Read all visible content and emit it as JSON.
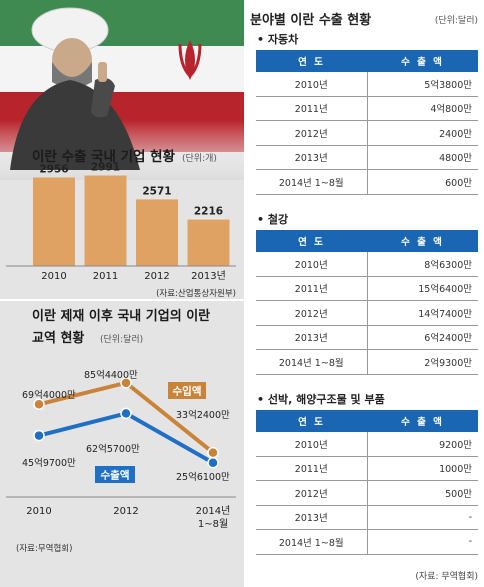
{
  "left": {
    "employment": {
      "title": "이란 수출 국내 기업 현황",
      "unit": "(단위:개)",
      "chart_data": {
        "type": "bar",
        "categories": [
          "2010",
          "2011",
          "2012",
          "2013년"
        ],
        "values": [
          2956,
          2991,
          2571,
          2216
        ],
        "ylim": [
          1400,
          3000
        ]
      },
      "source": "(자료:산업통상자원부)"
    },
    "trade": {
      "title_line1": "이란 제재 이후 국내 기업의 이란",
      "title_line2": "교역 현황",
      "unit": "(단위:달러)",
      "chart_data": {
        "type": "line",
        "x": [
          "2010",
          "2012",
          "2014년 1~8월"
        ],
        "x_tick_lines": [
          [
            "2010"
          ],
          [
            "2012"
          ],
          [
            "2014년",
            "1~8월"
          ]
        ],
        "series": [
          {
            "name": "수입액",
            "values": [
              69.4,
              85.44,
              33.24
            ],
            "labels": [
              "69억4000만",
              "85억4400만",
              "33억2400만"
            ],
            "color": "#c9843a"
          },
          {
            "name": "수출액",
            "values": [
              45.97,
              62.57,
              25.61
            ],
            "labels": [
              "45억9700만",
              "62억5700만",
              "25억6100만"
            ],
            "color": "#1f6fc5"
          }
        ],
        "ylim": [
          0,
          110
        ]
      },
      "source": "(자료:무역협회)"
    }
  },
  "right": {
    "title": "분야별 이란 수출 현황",
    "unit": "(단위:달러)",
    "col_year": "연 도",
    "col_value": "수 출 액",
    "sections": [
      {
        "name": "• 자동차",
        "rows": [
          {
            "year": "2010년",
            "value": "5억3800만"
          },
          {
            "year": "2011년",
            "value": "4억800만"
          },
          {
            "year": "2012년",
            "value": "2400만"
          },
          {
            "year": "2013년",
            "value": "4800만"
          },
          {
            "year": "2014년 1~8월",
            "value": "600만"
          }
        ]
      },
      {
        "name": "• 철강",
        "rows": [
          {
            "year": "2010년",
            "value": "8억6300만"
          },
          {
            "year": "2011년",
            "value": "15억6400만"
          },
          {
            "year": "2012년",
            "value": "14억7400만"
          },
          {
            "year": "2013년",
            "value": "6억2400만"
          },
          {
            "year": "2014년 1~8월",
            "value": "2억9300만"
          }
        ]
      },
      {
        "name": "• 선박, 해양구조물 및 부품",
        "rows": [
          {
            "year": "2010년",
            "value": "9200만"
          },
          {
            "year": "2011년",
            "value": "1000만"
          },
          {
            "year": "2012년",
            "value": "500만"
          },
          {
            "year": "2013년",
            "value": "-"
          },
          {
            "year": "2014년 1~8월",
            "value": "-"
          }
        ]
      }
    ],
    "source": "(자료: 무역협회)"
  },
  "colors": {
    "header_blue": "#1a66b2",
    "bar_orange": "#dfa263",
    "import_line": "#c9843a",
    "export_line": "#1f6fc5",
    "panel_bg": "#dcdcdc",
    "flag_red": "#b8242c",
    "flag_green": "#3e8a50"
  }
}
